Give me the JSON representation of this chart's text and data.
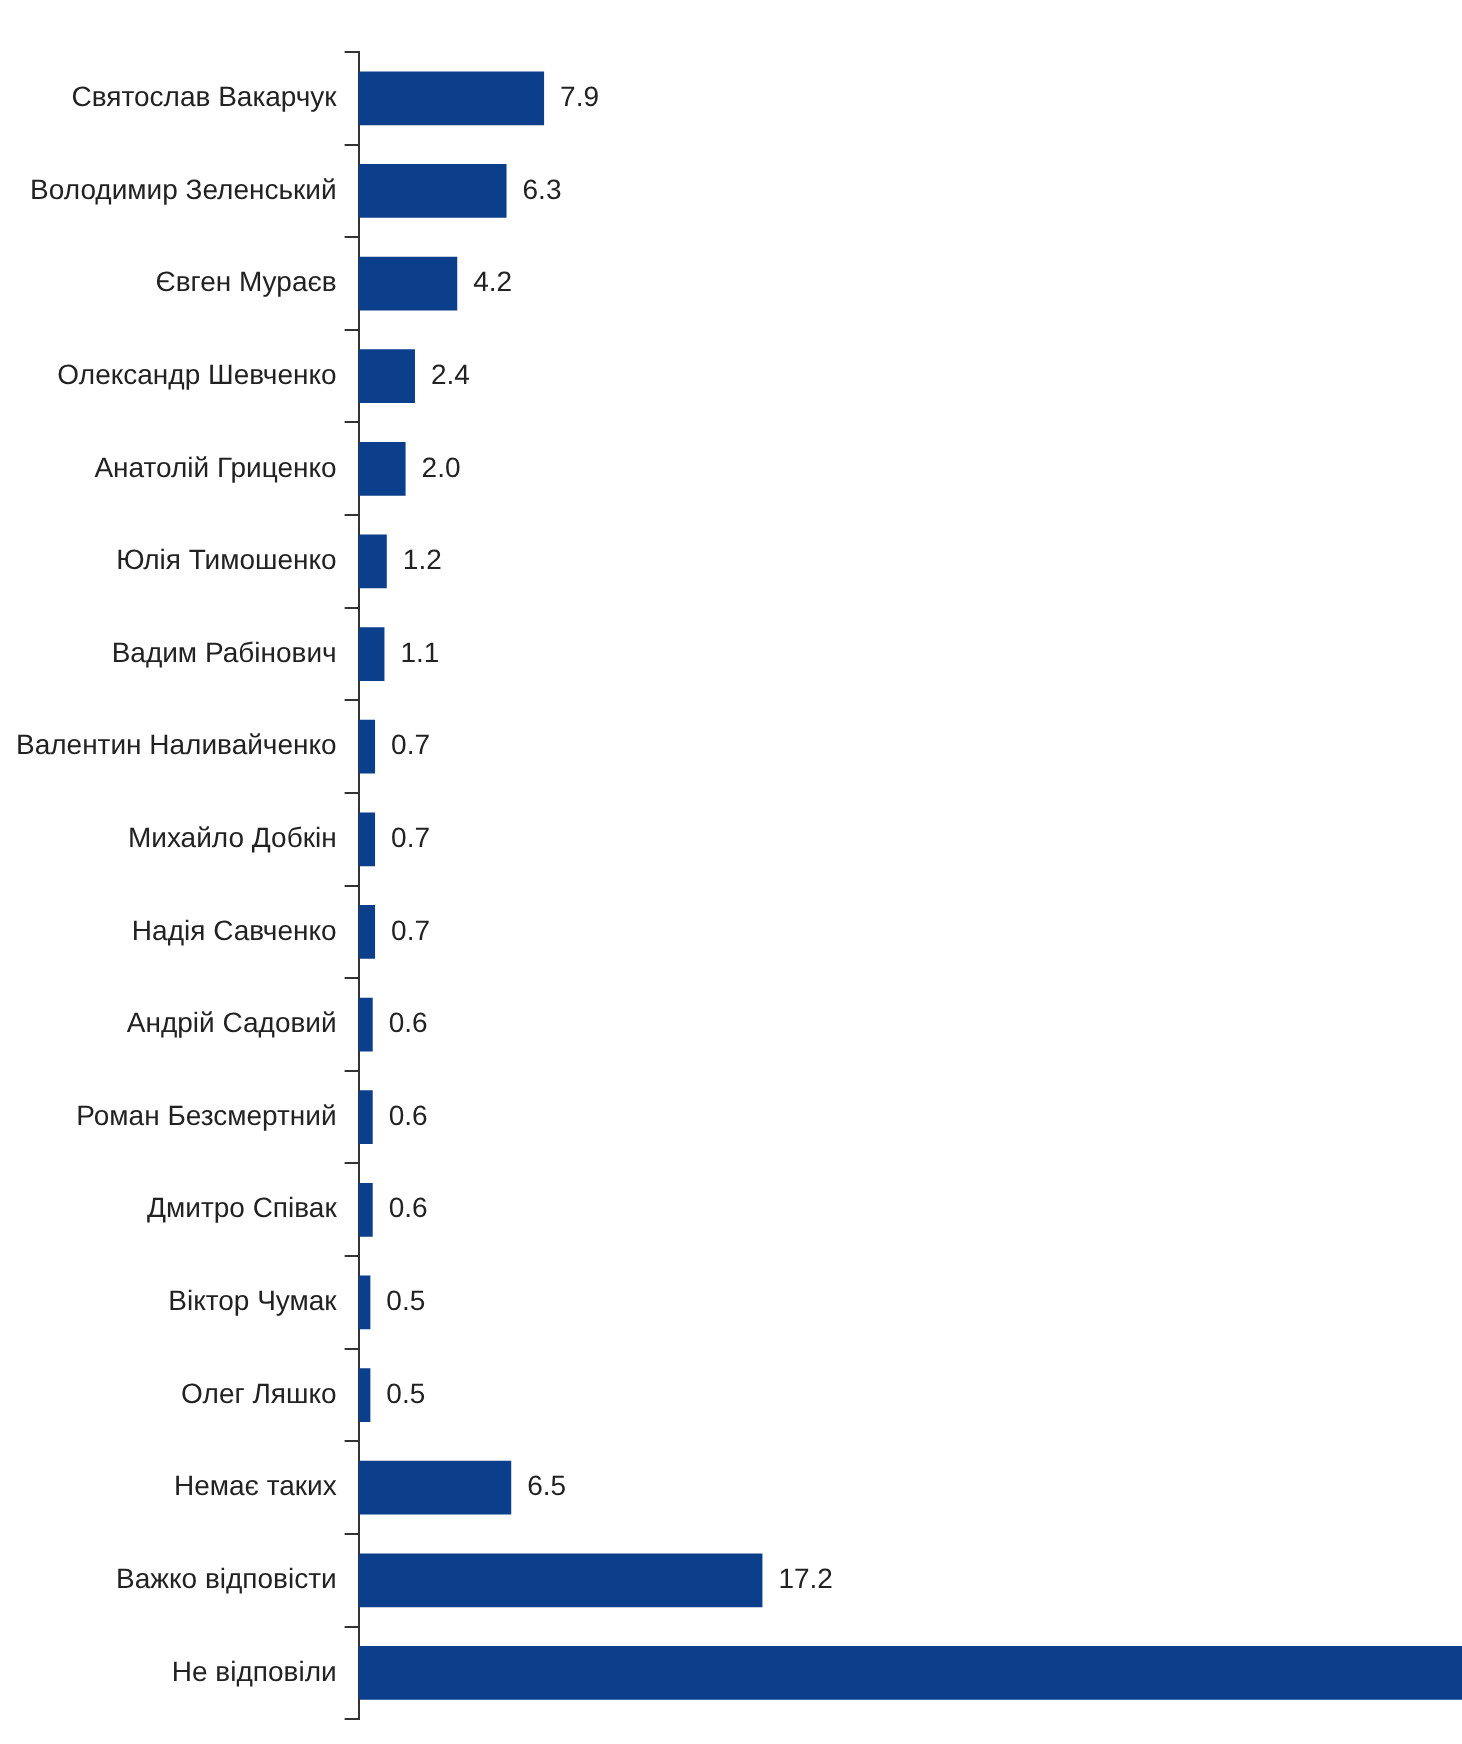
{
  "chart_data": {
    "type": "bar",
    "orientation": "horizontal",
    "categories": [
      "Святослав Вакарчук",
      "Володимир Зеленський",
      "Євген Мураєв",
      "Олександр Шевченко",
      "Анатолій Гриценко",
      "Юлія Тимошенко",
      "Вадим Рабінович",
      "Валентин Наливайченко",
      "Михайло Добкін",
      "Надія Савченко",
      "Андрій Садовий",
      "Роман Безсмертний",
      "Дмитро Співак",
      "Віктор Чумак",
      "Олег Ляшко",
      "Немає таких",
      "Важко відповісти",
      "Не відповіли"
    ],
    "values": [
      7.9,
      6.3,
      4.2,
      2.4,
      2.0,
      1.2,
      1.1,
      0.7,
      0.7,
      0.7,
      0.6,
      0.6,
      0.6,
      0.5,
      0.5,
      6.5,
      17.2,
      47
    ],
    "value_labels": [
      "7.9",
      "6.3",
      "4.2",
      "2.4",
      "2.0",
      "1.2",
      "1.1",
      "0.7",
      "0.7",
      "0.7",
      "0.6",
      "0.6",
      "0.6",
      "0.5",
      "0.5",
      "6.5",
      "17.2",
      null
    ],
    "color": "#0b3f8c",
    "grid": false,
    "legend": false
  }
}
